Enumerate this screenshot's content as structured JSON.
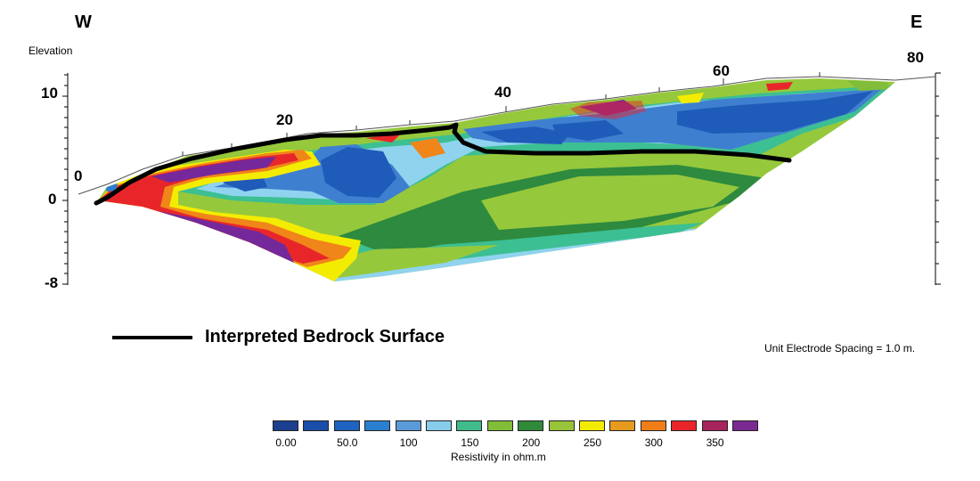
{
  "header": {
    "west": "W",
    "east": "E",
    "y_axis_title": "Elevation"
  },
  "axis": {
    "elevation_ticks": [
      "10",
      "0",
      "-8"
    ],
    "distance_labels": [
      "0",
      "20",
      "40",
      "60",
      "80"
    ]
  },
  "legend": {
    "bedrock_label": "Interpreted Bedrock Surface",
    "spacing_note": "Unit Electrode Spacing = 1.0 m."
  },
  "color_scale": {
    "title": "Resistivity in ohm.m",
    "labels": [
      "0.00",
      "50.0",
      "100",
      "150",
      "200",
      "250",
      "300",
      "350"
    ],
    "colors": [
      "#1d3f8f",
      "#1a4ea8",
      "#1f63c0",
      "#2a7fd0",
      "#5b9ad8",
      "#88ccec",
      "#3fbb8c",
      "#82bd3a",
      "#2f8a3a",
      "#98c43a",
      "#f4ec00",
      "#e69a20",
      "#f07d18",
      "#e8262a",
      "#a8245c",
      "#7a2a92"
    ]
  },
  "section_colors": {
    "dark_green": "#2d8a3e",
    "light_green": "#96c83c",
    "teal": "#3cbf92",
    "sky": "#8fd3ef",
    "blue_mid": "#3f7fd0",
    "blue_deep": "#1f5bb8",
    "purple": "#74289a",
    "red": "#e8262a",
    "orange": "#f0851a",
    "yellow": "#f4ec00",
    "bedrock_line": "#000000"
  }
}
